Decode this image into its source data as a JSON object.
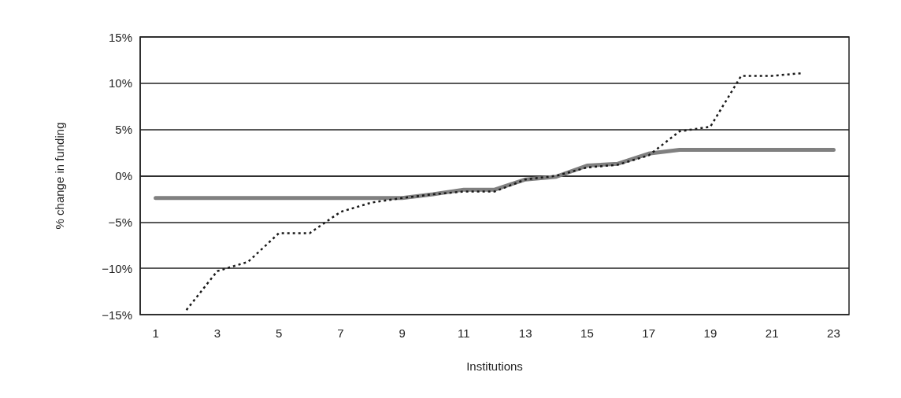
{
  "chart_data": {
    "type": "line",
    "xlabel": "Institutions",
    "ylabel": "% change in funding",
    "x": [
      1,
      2,
      3,
      4,
      5,
      6,
      7,
      8,
      9,
      10,
      11,
      12,
      13,
      14,
      15,
      16,
      17,
      18,
      19,
      20,
      21,
      22,
      23
    ],
    "xlim": [
      0.5,
      23.5
    ],
    "xticks": [
      1,
      3,
      5,
      7,
      9,
      11,
      13,
      15,
      17,
      19,
      21,
      23
    ],
    "series": [
      {
        "color": "#808080",
        "line_style": "solid",
        "values": [
          -2.4,
          -2.4,
          -2.4,
          -2.4,
          -2.4,
          -2.4,
          -2.4,
          -2.4,
          -2.4,
          -2.0,
          -1.5,
          -1.5,
          -0.4,
          -0.1,
          1.1,
          1.3,
          2.4,
          2.8,
          2.8,
          2.8,
          2.8,
          2.8,
          2.8
        ]
      },
      {
        "color": "#1a1a1a",
        "line_style": "dotted",
        "values": [
          null,
          -14.5,
          -10.3,
          -9.3,
          -6.2,
          -6.2,
          -3.9,
          -2.9,
          -2.4,
          -2.0,
          -1.7,
          -1.7,
          -0.4,
          0,
          0.9,
          1.2,
          2.2,
          4.8,
          5.3,
          10.8,
          10.8,
          11.1,
          null
        ]
      }
    ],
    "ylim": [
      -15,
      15
    ],
    "yticks": [
      {
        "value": -15,
        "label": "−15%"
      },
      {
        "value": -10,
        "label": "−10%"
      },
      {
        "value": -5,
        "label": "−5%"
      },
      {
        "value": 0,
        "label": "0%"
      },
      {
        "value": 5,
        "label": "5%"
      },
      {
        "value": 10,
        "label": "10%"
      },
      {
        "value": 15,
        "label": "15%"
      }
    ],
    "grid": "y",
    "marker": "none"
  }
}
